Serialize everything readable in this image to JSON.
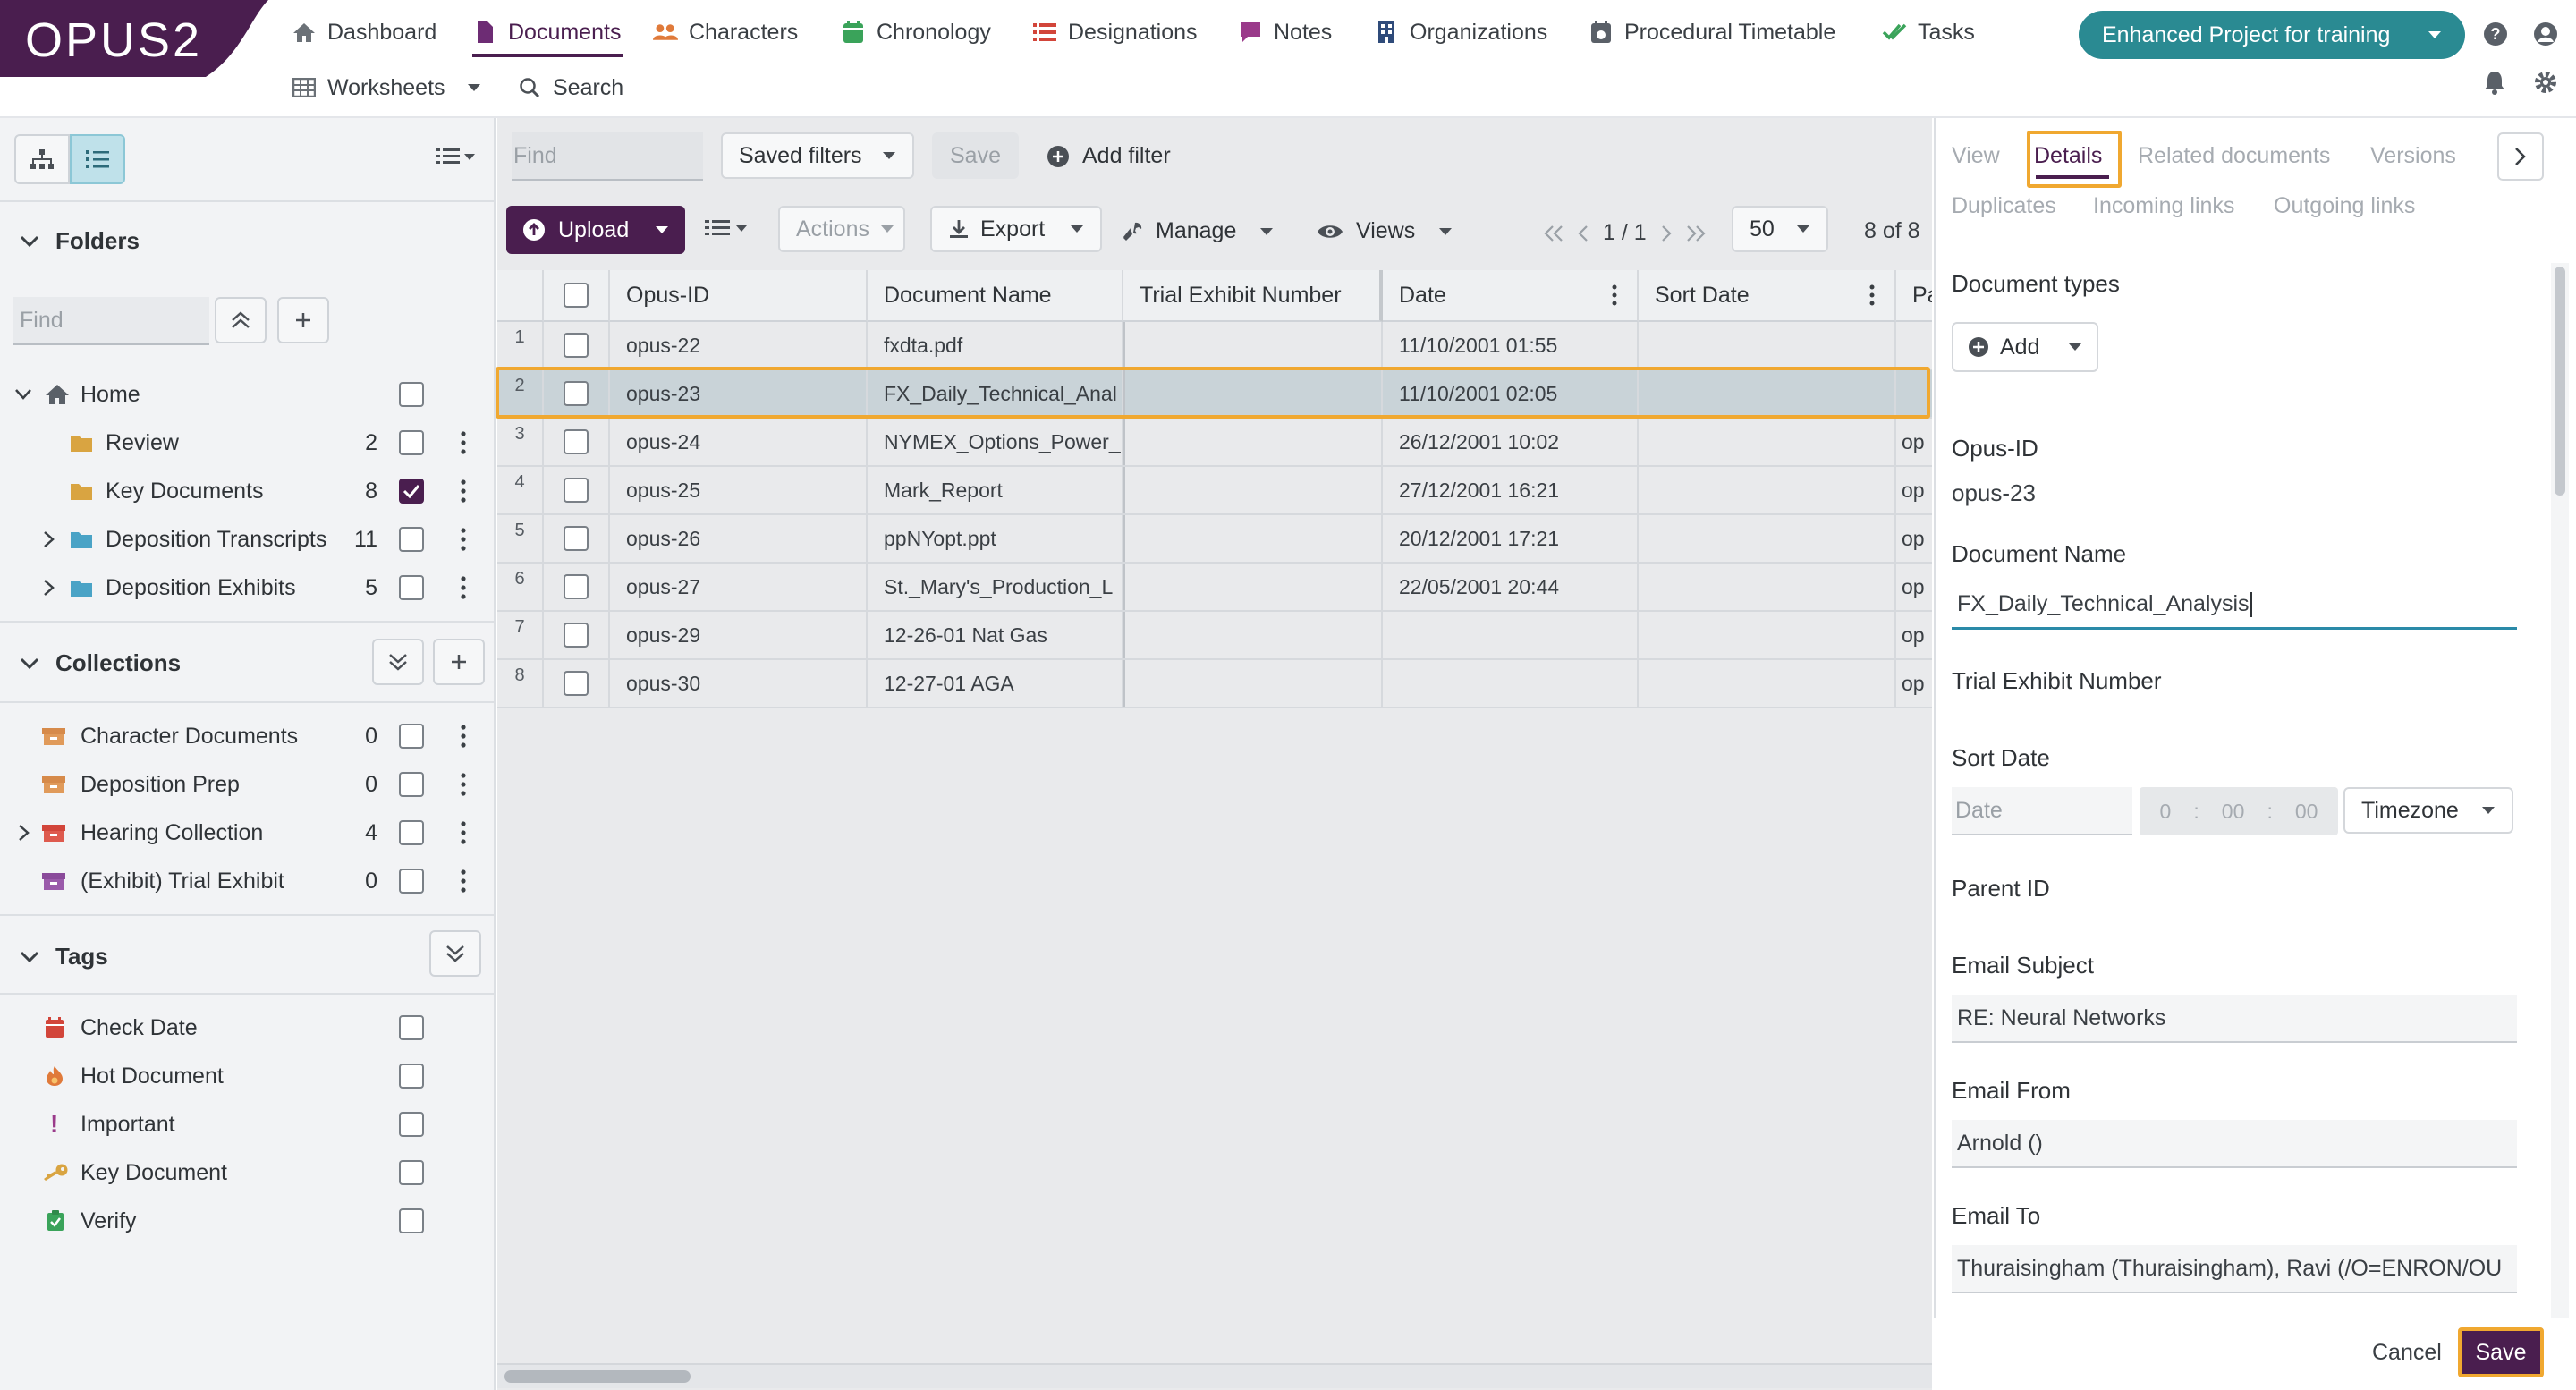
{
  "brand": {
    "logo_text": "OPUS2"
  },
  "nav": {
    "row1": [
      {
        "label": "Dashboard",
        "icon": "home-icon"
      },
      {
        "label": "Documents",
        "icon": "document-icon"
      },
      {
        "label": "Characters",
        "icon": "people-icon"
      },
      {
        "label": "Chronology",
        "icon": "calendar-icon"
      },
      {
        "label": "Designations",
        "icon": "list-icon"
      },
      {
        "label": "Notes",
        "icon": "note-icon"
      },
      {
        "label": "Organizations",
        "icon": "building-icon"
      },
      {
        "label": "Procedural Timetable",
        "icon": "calendar-clock-icon"
      },
      {
        "label": "Tasks",
        "icon": "check-icon"
      }
    ],
    "row2": [
      {
        "label": "Worksheets",
        "icon": "table-icon"
      },
      {
        "label": "Search",
        "icon": "search-icon"
      }
    ],
    "project": "Enhanced Project for training"
  },
  "sidebar": {
    "folders": {
      "title": "Folders",
      "find_placeholder": "Find",
      "items": [
        {
          "label": "Home",
          "count": ""
        },
        {
          "label": "Review",
          "count": "2"
        },
        {
          "label": "Key Documents",
          "count": "8"
        },
        {
          "label": "Deposition Transcripts",
          "count": "11"
        },
        {
          "label": "Deposition Exhibits",
          "count": "5"
        }
      ]
    },
    "collections": {
      "title": "Collections",
      "items": [
        {
          "label": "Character Documents",
          "count": "0"
        },
        {
          "label": "Deposition Prep",
          "count": "0"
        },
        {
          "label": "Hearing Collection",
          "count": "4"
        },
        {
          "label": "(Exhibit) Trial Exhibit",
          "count": "0"
        }
      ]
    },
    "tags": {
      "title": "Tags",
      "items": [
        {
          "label": "Check Date"
        },
        {
          "label": "Hot Document"
        },
        {
          "label": "Important",
          "glyph": "!"
        },
        {
          "label": "Key Document"
        },
        {
          "label": "Verify"
        }
      ]
    }
  },
  "toolbar": {
    "find_placeholder": "Find",
    "saved_filters": "Saved filters",
    "save": "Save",
    "add_filter": "Add filter",
    "upload": "Upload",
    "actions": "Actions",
    "export": "Export",
    "manage": "Manage",
    "views": "Views",
    "page": "1 / 1",
    "page_size": "50",
    "record_count": "8 of 8"
  },
  "grid": {
    "columns": [
      "Opus-ID",
      "Document Name",
      "Trial Exhibit Number",
      "Date",
      "Sort Date",
      "Pa"
    ],
    "rows": [
      {
        "n": "1",
        "id": "opus-22",
        "name": "fxdta.pdf",
        "date": "11/10/2001 01:55",
        "pa": ""
      },
      {
        "n": "2",
        "id": "opus-23",
        "name": "FX_Daily_Technical_Anal",
        "date": "11/10/2001 02:05",
        "pa": ""
      },
      {
        "n": "3",
        "id": "opus-24",
        "name": "NYMEX_Options_Power_",
        "date": "26/12/2001 10:02",
        "pa": "op"
      },
      {
        "n": "4",
        "id": "opus-25",
        "name": "Mark_Report",
        "date": "27/12/2001 16:21",
        "pa": "op"
      },
      {
        "n": "5",
        "id": "opus-26",
        "name": "ppNYopt.ppt",
        "date": "20/12/2001 17:21",
        "pa": "op"
      },
      {
        "n": "6",
        "id": "opus-27",
        "name": "St._Mary's_Production_L",
        "date": "22/05/2001 20:44",
        "pa": "op"
      },
      {
        "n": "7",
        "id": "opus-29",
        "name": "12-26-01 Nat Gas",
        "date": "",
        "pa": "op"
      },
      {
        "n": "8",
        "id": "opus-30",
        "name": "12-27-01 AGA",
        "date": "",
        "pa": "op"
      }
    ]
  },
  "details": {
    "tabs": [
      "View",
      "Details",
      "Related documents",
      "Versions"
    ],
    "tabs2": [
      "Duplicates",
      "Incoming links",
      "Outgoing links"
    ],
    "document_types_label": "Document types",
    "add_label": "Add",
    "opus_id_label": "Opus-ID",
    "opus_id_value": "opus-23",
    "doc_name_label": "Document Name",
    "doc_name_value": "FX_Daily_Technical_Analysis",
    "trial_exhibit_label": "Trial Exhibit Number",
    "sort_date_label": "Sort Date",
    "date_placeholder": "Date",
    "time_h": "0",
    "time_m": "00",
    "time_s": "00",
    "timezone": "Timezone",
    "parent_id_label": "Parent ID",
    "email_subject_label": "Email Subject",
    "email_subject_value": "RE: Neural Networks",
    "email_from_label": "Email From",
    "email_from_value": "Arnold ()",
    "email_to_label": "Email To",
    "email_to_value": "Thuraisingham (Thuraisingham), Ravi (/O=ENRON/OU",
    "cancel": "Cancel",
    "save": "Save"
  },
  "colors": {
    "brand_purple": "#4a1e4f",
    "accent_teal": "#2a8a92",
    "highlight_orange": "#f0a830",
    "selected_row": "#c9d3d8"
  }
}
